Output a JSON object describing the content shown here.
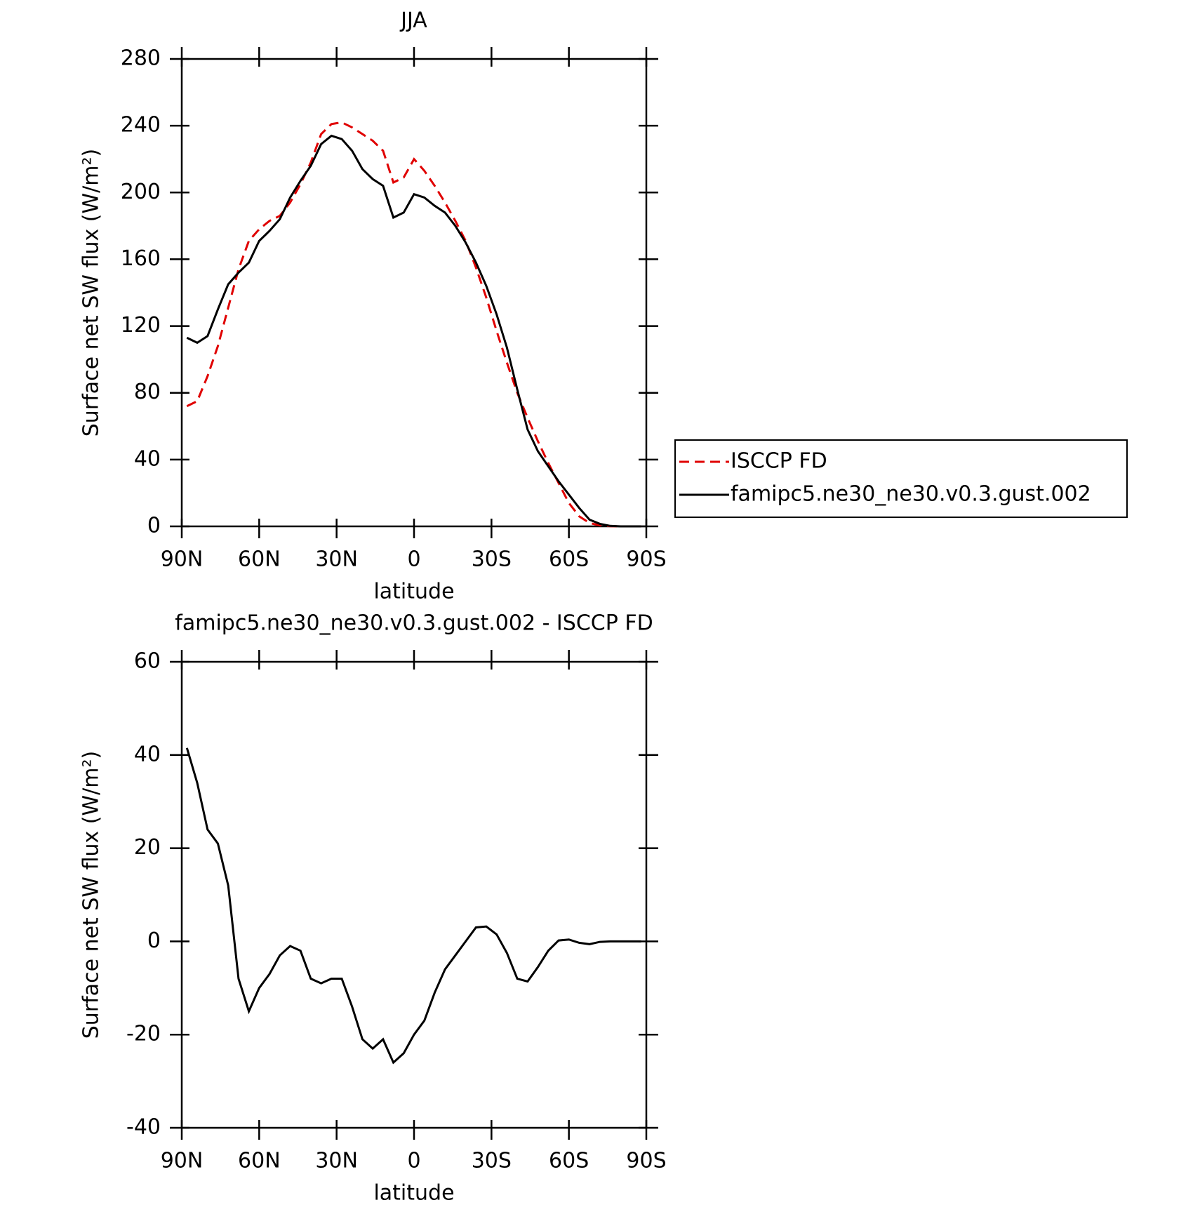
{
  "chart_data": [
    {
      "type": "line",
      "title": "JJA",
      "xlabel": "latitude",
      "ylabel": "Surface net SW flux (W/m²)",
      "x": [
        88,
        84,
        80,
        76,
        72,
        68,
        64,
        60,
        56,
        52,
        48,
        44,
        40,
        36,
        32,
        28,
        24,
        20,
        16,
        12,
        8,
        4,
        0,
        -4,
        -8,
        -12,
        -16,
        -20,
        -24,
        -28,
        -32,
        -36,
        -40,
        -44,
        -48,
        -52,
        -56,
        -60,
        -64,
        -68,
        -72,
        -76,
        -80,
        -84,
        -88
      ],
      "series": [
        {
          "name": "ISCCP FD",
          "color": "#e00000",
          "dashed": true,
          "values": [
            72,
            75,
            90,
            108,
            131,
            154,
            171,
            178,
            183,
            186,
            194,
            205,
            218,
            235,
            241,
            242,
            239,
            235,
            231,
            225,
            206,
            209,
            220,
            213,
            204,
            194,
            183,
            171,
            155,
            137,
            117,
            98,
            80,
            65,
            51,
            38,
            26,
            14,
            6,
            2,
            0.6,
            0.1,
            0,
            0,
            0
          ]
        },
        {
          "name": "famipc5.ne30_ne30.v0.3.gust.002",
          "color": "#000000",
          "dashed": false,
          "values": [
            113,
            110,
            114,
            130,
            145,
            152,
            158,
            171,
            177,
            184,
            197,
            207,
            216,
            229,
            234,
            232,
            225,
            214,
            208,
            204,
            185,
            188,
            199,
            197,
            192,
            188,
            180,
            170,
            158,
            144,
            127,
            107,
            82,
            58,
            45,
            36,
            27,
            19,
            11,
            4,
            1.5,
            0.3,
            0,
            0,
            0
          ]
        }
      ],
      "xlim": [
        90,
        -90
      ],
      "xticks": [
        {
          "value": 90,
          "label": "90N"
        },
        {
          "value": 60,
          "label": "60N"
        },
        {
          "value": 30,
          "label": "30N"
        },
        0,
        {
          "value": -30,
          "label": "30S"
        },
        {
          "value": -60,
          "label": "60S"
        },
        {
          "value": -90,
          "label": "90S"
        }
      ],
      "ylim": [
        0,
        280
      ],
      "yticks": [
        0,
        40,
        80,
        120,
        160,
        200,
        240,
        280
      ],
      "legend": "right"
    },
    {
      "type": "line",
      "title": "famipc5.ne30_ne30.v0.3.gust.002 - ISCCP FD",
      "xlabel": "latitude",
      "ylabel": "Surface net SW flux (W/m²)",
      "x": [
        88,
        84,
        80,
        76,
        72,
        68,
        64,
        60,
        56,
        52,
        48,
        44,
        40,
        36,
        32,
        28,
        24,
        20,
        16,
        12,
        8,
        4,
        0,
        -4,
        -8,
        -12,
        -16,
        -20,
        -24,
        -28,
        -32,
        -36,
        -40,
        -44,
        -48,
        -52,
        -56,
        -60,
        -64,
        -68,
        -72,
        -76,
        -80,
        -84,
        -88
      ],
      "series": [
        {
          "color": "#000000",
          "dashed": false,
          "values": [
            41.5,
            34,
            24,
            21,
            12,
            -8,
            -15,
            -10,
            -7,
            -3,
            -1,
            -2,
            -8,
            -9,
            -8,
            -8,
            -14,
            -21,
            -23,
            -21,
            -26,
            -24,
            -20,
            -17,
            -11,
            -6,
            -3,
            0,
            3,
            3.2,
            1.5,
            -2.5,
            -8,
            -8.6,
            -5.5,
            -2,
            0.2,
            0.4,
            -0.3,
            -0.6,
            -0.1,
            0,
            0,
            0,
            0
          ]
        }
      ],
      "xlim": [
        90,
        -90
      ],
      "xticks": [
        {
          "value": 90,
          "label": "90N"
        },
        {
          "value": 60,
          "label": "60N"
        },
        {
          "value": 30,
          "label": "30N"
        },
        0,
        {
          "value": -30,
          "label": "30S"
        },
        {
          "value": -60,
          "label": "60S"
        },
        {
          "value": -90,
          "label": "90S"
        }
      ],
      "ylim": [
        -40,
        60
      ],
      "yticks": [
        -40,
        -20,
        0,
        20,
        40,
        60
      ]
    }
  ]
}
